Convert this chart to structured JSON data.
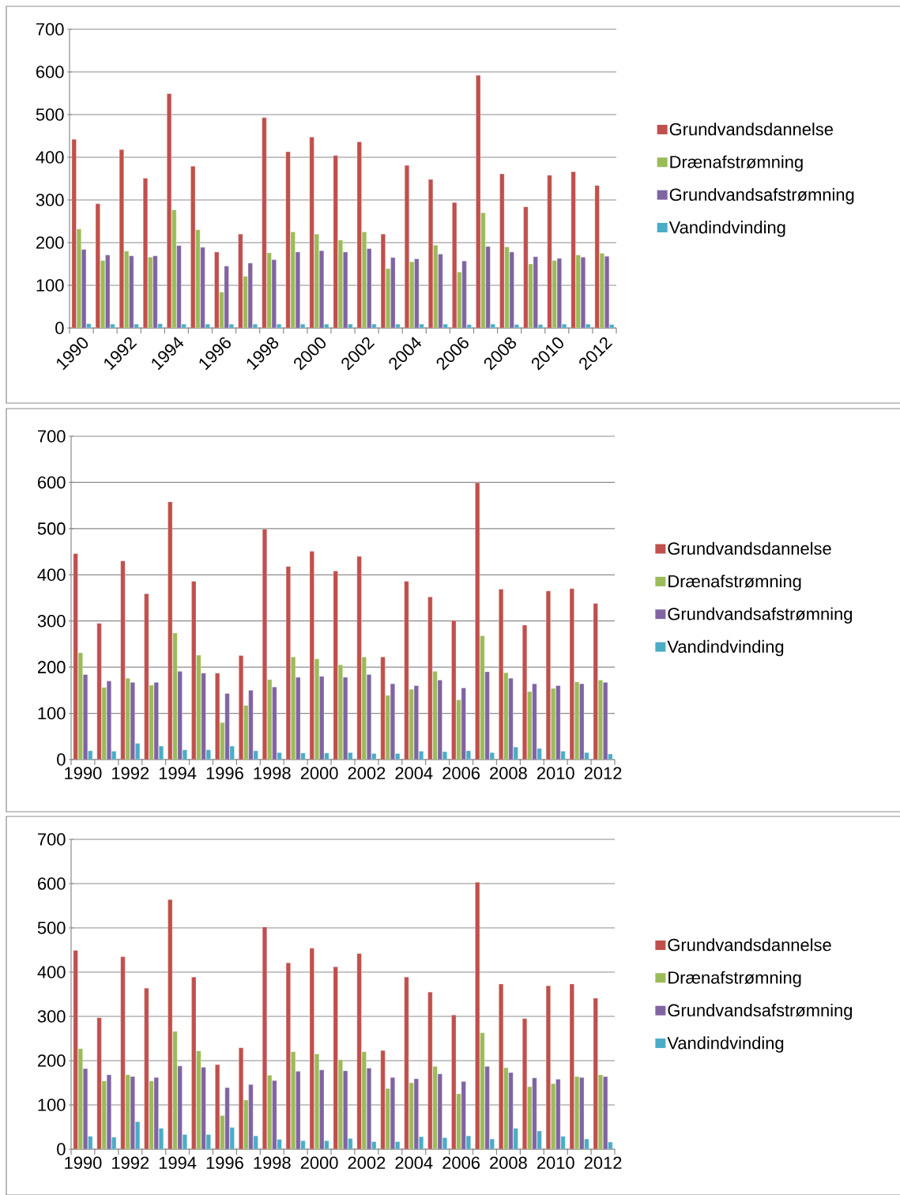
{
  "chart_data": [
    {
      "type": "bar",
      "categories": [
        "1990",
        null,
        "1992",
        null,
        "1994",
        null,
        "1996",
        null,
        "1998",
        null,
        "2000",
        null,
        "2002",
        null,
        "2004",
        null,
        "2006",
        null,
        "2008",
        null,
        "2010",
        null,
        "2012"
      ],
      "ylim": [
        0,
        700
      ],
      "yticks": [
        0,
        100,
        200,
        300,
        400,
        500,
        600,
        700
      ],
      "grid": "y",
      "legend": "right",
      "series": [
        {
          "name": "Grundvandsdannelse",
          "color": "#c0504d",
          "values": [
            442,
            291,
            418,
            351,
            549,
            379,
            178,
            220,
            493,
            413,
            447,
            404,
            436,
            220,
            381,
            348,
            294,
            592,
            361,
            284,
            358,
            366,
            334
          ]
        },
        {
          "name": "Drænafstrømning",
          "color": "#9bbb59",
          "values": [
            232,
            158,
            180,
            166,
            277,
            230,
            84,
            121,
            176,
            225,
            220,
            206,
            225,
            139,
            155,
            194,
            131,
            270,
            190,
            150,
            158,
            171,
            175
          ]
        },
        {
          "name": "Grundvandsafstrømning",
          "color": "#8064a2",
          "values": [
            184,
            171,
            169,
            169,
            193,
            189,
            145,
            152,
            160,
            178,
            181,
            178,
            186,
            165,
            162,
            173,
            157,
            191,
            178,
            167,
            163,
            166,
            168
          ]
        },
        {
          "name": "Vandindvinding",
          "color": "#4bacc6",
          "values": [
            10,
            9,
            9,
            10,
            9,
            9,
            9,
            9,
            9,
            9,
            9,
            9,
            9,
            9,
            9,
            9,
            8,
            9,
            8,
            8,
            9,
            9,
            8
          ]
        }
      ]
    },
    {
      "type": "bar",
      "categories": [
        "1990",
        null,
        "1992",
        null,
        "1994",
        null,
        "1996",
        null,
        "1998",
        null,
        "2000",
        null,
        "2002",
        null,
        "2004",
        null,
        "2006",
        null,
        "2008",
        null,
        "2010",
        null,
        "2012"
      ],
      "ylim": [
        0,
        700
      ],
      "yticks": [
        0,
        100,
        200,
        300,
        400,
        500,
        600,
        700
      ],
      "grid": "y",
      "legend": "right",
      "series": [
        {
          "name": "Grundvandsdannelse",
          "color": "#c0504d",
          "values": [
            446,
            295,
            430,
            359,
            558,
            386,
            187,
            225,
            499,
            418,
            451,
            408,
            440,
            222,
            386,
            352,
            301,
            599,
            369,
            291,
            365,
            370,
            338
          ]
        },
        {
          "name": "Drænafstrømning",
          "color": "#9bbb59",
          "values": [
            231,
            156,
            176,
            161,
            274,
            226,
            80,
            117,
            173,
            222,
            218,
            205,
            222,
            139,
            152,
            191,
            129,
            268,
            188,
            147,
            154,
            168,
            172
          ]
        },
        {
          "name": "Grundvandsafstrømning",
          "color": "#8064a2",
          "values": [
            184,
            170,
            167,
            167,
            191,
            187,
            143,
            150,
            157,
            178,
            180,
            178,
            184,
            164,
            160,
            172,
            155,
            190,
            176,
            164,
            160,
            164,
            167
          ]
        },
        {
          "name": "Vandindvinding",
          "color": "#4bacc6",
          "values": [
            19,
            18,
            35,
            29,
            21,
            21,
            29,
            19,
            15,
            14,
            14,
            15,
            13,
            13,
            18,
            17,
            19,
            15,
            27,
            24,
            18,
            15,
            12
          ]
        }
      ]
    },
    {
      "type": "bar",
      "categories": [
        "1990",
        null,
        "1992",
        null,
        "1994",
        null,
        "1996",
        null,
        "1998",
        null,
        "2000",
        null,
        "2002",
        null,
        "2004",
        null,
        "2006",
        null,
        "2008",
        null,
        "2010",
        null,
        "2012"
      ],
      "ylim": [
        0,
        700
      ],
      "yticks": [
        0,
        100,
        200,
        300,
        400,
        500,
        600,
        700
      ],
      "grid": "y",
      "legend": "right",
      "series": [
        {
          "name": "Grundvandsdannelse",
          "color": "#c0504d",
          "values": [
            449,
            297,
            435,
            364,
            564,
            389,
            191,
            229,
            502,
            421,
            454,
            412,
            442,
            223,
            389,
            355,
            303,
            603,
            373,
            295,
            369,
            373,
            341
          ]
        },
        {
          "name": "Drænafstrømning",
          "color": "#9bbb59",
          "values": [
            227,
            154,
            168,
            154,
            266,
            222,
            76,
            111,
            167,
            220,
            215,
            202,
            220,
            137,
            150,
            187,
            125,
            263,
            184,
            141,
            148,
            164,
            168
          ]
        },
        {
          "name": "Grundvandsafstrømning",
          "color": "#8064a2",
          "values": [
            182,
            168,
            164,
            162,
            188,
            185,
            139,
            146,
            155,
            176,
            179,
            177,
            183,
            162,
            159,
            170,
            153,
            187,
            173,
            161,
            158,
            162,
            164
          ]
        },
        {
          "name": "Vandindvinding",
          "color": "#4bacc6",
          "values": [
            29,
            27,
            62,
            47,
            33,
            33,
            49,
            30,
            22,
            19,
            19,
            24,
            17,
            17,
            28,
            26,
            30,
            23,
            47,
            41,
            29,
            23,
            16
          ]
        }
      ]
    }
  ]
}
